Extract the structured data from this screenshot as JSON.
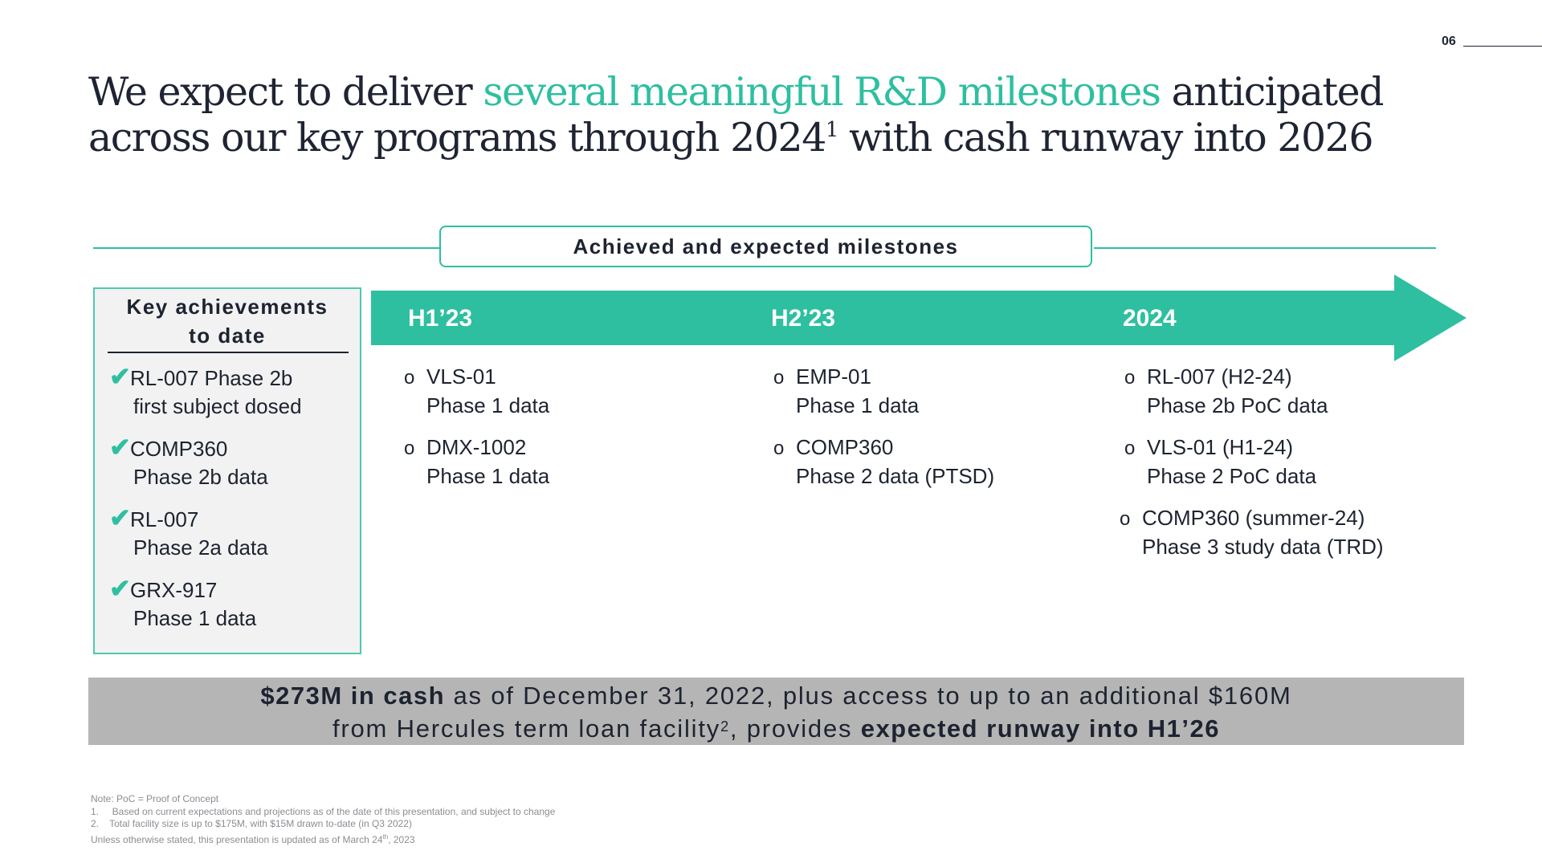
{
  "page_number": "06",
  "title": {
    "part1": "We expect to deliver ",
    "accent": "several meaningful R&D milestones",
    "part2": " anticipated across our key programs through 2024",
    "sup": "1",
    "part3": " with cash runway into 2026"
  },
  "header": "Achieved and expected milestones",
  "key_achievements": {
    "title_line1": "Key achievements",
    "title_line2": "to date",
    "items": [
      {
        "line1": "RL-007 Phase 2b",
        "line2": "first subject dosed"
      },
      {
        "line1": "COMP360",
        "line2": "Phase 2b data"
      },
      {
        "line1": "RL-007",
        "line2": "Phase 2a data"
      },
      {
        "line1": "GRX-917",
        "line2": "Phase 1 data"
      }
    ],
    "check_icon": "✔"
  },
  "timeline": {
    "color": "#2ebfa0",
    "periods": [
      {
        "label": "H1’23",
        "milestones": [
          {
            "line1": "VLS-01",
            "line2": "Phase 1 data"
          },
          {
            "line1": "DMX-1002",
            "line2": "Phase 1 data"
          }
        ]
      },
      {
        "label": "H2’23",
        "milestones": [
          {
            "line1": "EMP-01",
            "line2": "Phase 1 data"
          },
          {
            "line1": "COMP360",
            "line2": "Phase 2 data (PTSD)"
          }
        ]
      },
      {
        "label": "2024",
        "milestones": [
          {
            "line1": "RL-007 (H2-24)",
            "line2": "Phase 2b PoC data"
          },
          {
            "line1": "VLS-01 (H1-24)",
            "line2": "Phase 2 PoC data"
          },
          {
            "line1": "COMP360 (summer-24)",
            "line2": "Phase 3 study data (TRD)"
          }
        ]
      }
    ],
    "bullet": "o"
  },
  "banner": {
    "bold1": "$273M in cash",
    "text1": " as of December 31, 2022, plus access to up to an additional $160M",
    "text2": "from Hercules term loan facility",
    "sup": "2",
    "text3": ", provides ",
    "bold2": "expected runway into H1’26"
  },
  "notes": {
    "line1": "Note: PoC = Proof of Concept",
    "line2": "1.     Based on current expectations and projections as of the date of this presentation, and subject to change",
    "line3": "2.    Total facility size is up to $175M, with $15M drawn to-date (in Q3 2022)",
    "line4a": "Unless otherwise stated, this presentation is updated as of March 24",
    "line4sup": "th",
    "line4b": ", 2023"
  }
}
